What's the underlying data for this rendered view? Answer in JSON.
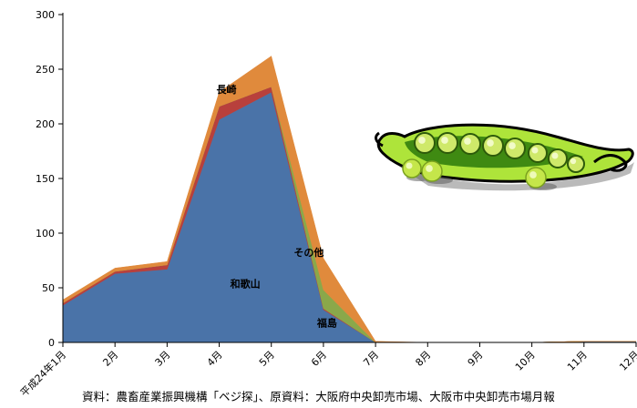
{
  "chart_data": {
    "type": "area",
    "stacked": true,
    "categories": [
      "平成24年1月",
      "2月",
      "3月",
      "4月",
      "5月",
      "6月",
      "7月",
      "8月",
      "9月",
      "10月",
      "11月",
      "12月"
    ],
    "ylim": [
      0,
      300
    ],
    "yticks": [
      0,
      50,
      100,
      150,
      200,
      250,
      300
    ],
    "grid": false,
    "series": [
      {
        "name": "和歌山",
        "color": "#4a73a8",
        "values": [
          34,
          63,
          67,
          204,
          229,
          30,
          0,
          0,
          0,
          0,
          1,
          1
        ]
      },
      {
        "name": "長崎",
        "color": "#b8403c",
        "values": [
          2,
          2,
          4,
          12,
          5,
          1,
          0,
          0,
          0,
          0,
          0,
          0
        ]
      },
      {
        "name": "福島",
        "color": "#8aa84a",
        "values": [
          0,
          0,
          0,
          0,
          0,
          17,
          0,
          0,
          0,
          0,
          0,
          0
        ]
      },
      {
        "name": "その他",
        "color": "#e08a3c",
        "values": [
          3,
          3,
          3,
          13,
          28,
          29,
          1,
          0,
          0,
          0,
          0,
          0
        ]
      }
    ],
    "labels": [
      {
        "text": "和歌山",
        "series": 0
      },
      {
        "text": "長崎",
        "series": 1
      },
      {
        "text": "福島",
        "series": 2
      },
      {
        "text": "その他",
        "series": 3
      }
    ]
  },
  "source_note": "資料：農畜産業振興機構「ベジ探」、原資料：大阪府中央卸売市場、大阪市中央卸売市場月報"
}
